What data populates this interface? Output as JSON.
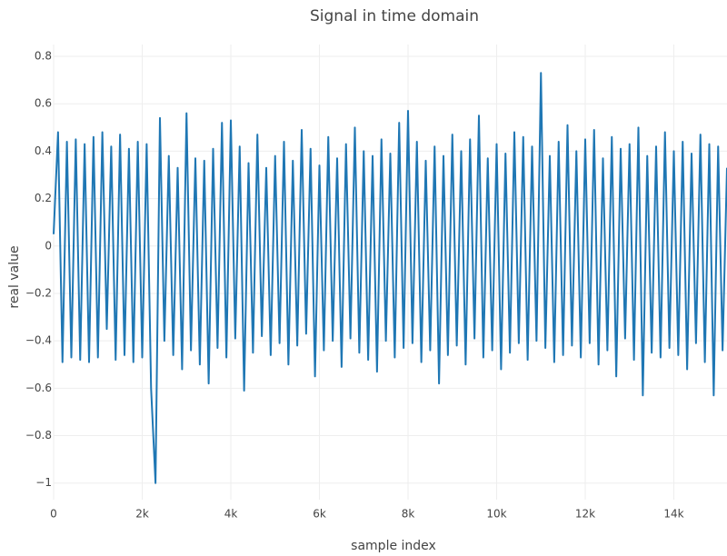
{
  "chart_data": {
    "type": "line",
    "title": "Signal in time domain",
    "x_label": "sample index",
    "y_label": "real value",
    "x": [
      0,
      100,
      200,
      300,
      400,
      500,
      600,
      700,
      800,
      900,
      1000,
      1100,
      1200,
      1300,
      1400,
      1500,
      1600,
      1700,
      1800,
      1900,
      2000,
      2100,
      2200,
      2300,
      2400,
      2500,
      2600,
      2700,
      2800,
      2900,
      3000,
      3100,
      3200,
      3300,
      3400,
      3500,
      3600,
      3700,
      3800,
      3900,
      4000,
      4100,
      4200,
      4300,
      4400,
      4500,
      4600,
      4700,
      4800,
      4900,
      5000,
      5100,
      5200,
      5300,
      5400,
      5500,
      5600,
      5700,
      5800,
      5900,
      6000,
      6100,
      6200,
      6300,
      6400,
      6500,
      6600,
      6700,
      6800,
      6900,
      7000,
      7100,
      7200,
      7300,
      7400,
      7500,
      7600,
      7700,
      7800,
      7900,
      8000,
      8100,
      8200,
      8300,
      8400,
      8500,
      8600,
      8700,
      8800,
      8900,
      9000,
      9100,
      9200,
      9300,
      9400,
      9500,
      9600,
      9700,
      9800,
      9900,
      10000,
      10100,
      10200,
      10300,
      10400,
      10500,
      10600,
      10700,
      10800,
      10900,
      11000,
      11100,
      11200,
      11300,
      11400,
      11500,
      11600,
      11700,
      11800,
      11900,
      12000,
      12100,
      12200,
      12300,
      12400,
      12500,
      12600,
      12700,
      12800,
      12900,
      13000,
      13100,
      13200,
      13300,
      13400,
      13500,
      13600,
      13700,
      13800,
      13900,
      14000,
      14100,
      14200,
      14300,
      14400,
      14500,
      14600,
      14700,
      14800,
      14900,
      15000,
      15100,
      15200
    ],
    "series": [
      {
        "name": "signal",
        "color": "#1f77b4",
        "values": [
          0.05,
          0.48,
          -0.49,
          0.44,
          -0.47,
          0.45,
          -0.48,
          0.43,
          -0.49,
          0.46,
          -0.47,
          0.48,
          -0.35,
          0.42,
          -0.48,
          0.47,
          -0.46,
          0.41,
          -0.49,
          0.44,
          -0.47,
          0.43,
          -0.6,
          -1.0,
          0.54,
          -0.4,
          0.38,
          -0.46,
          0.33,
          -0.52,
          0.56,
          -0.44,
          0.37,
          -0.5,
          0.36,
          -0.58,
          0.41,
          -0.43,
          0.52,
          -0.47,
          0.53,
          -0.39,
          0.42,
          -0.61,
          0.35,
          -0.45,
          0.47,
          -0.38,
          0.33,
          -0.46,
          0.38,
          -0.41,
          0.44,
          -0.5,
          0.36,
          -0.42,
          0.49,
          -0.37,
          0.41,
          -0.55,
          0.34,
          -0.44,
          0.46,
          -0.4,
          0.37,
          -0.51,
          0.43,
          -0.39,
          0.5,
          -0.45,
          0.4,
          -0.48,
          0.38,
          -0.53,
          0.45,
          -0.4,
          0.39,
          -0.47,
          0.52,
          -0.43,
          0.57,
          -0.41,
          0.44,
          -0.49,
          0.36,
          -0.44,
          0.42,
          -0.58,
          0.38,
          -0.46,
          0.47,
          -0.42,
          0.4,
          -0.5,
          0.45,
          -0.39,
          0.55,
          -0.47,
          0.37,
          -0.44,
          0.43,
          -0.52,
          0.39,
          -0.45,
          0.48,
          -0.41,
          0.46,
          -0.48,
          0.42,
          -0.4,
          0.73,
          -0.43,
          0.38,
          -0.49,
          0.44,
          -0.46,
          0.51,
          -0.42,
          0.4,
          -0.47,
          0.45,
          -0.41,
          0.49,
          -0.5,
          0.37,
          -0.44,
          0.46,
          -0.55,
          0.41,
          -0.39,
          0.43,
          -0.48,
          0.5,
          -0.63,
          0.38,
          -0.45,
          0.42,
          -0.47,
          0.48,
          -0.43,
          0.4,
          -0.46,
          0.44,
          -0.52,
          0.39,
          -0.41,
          0.47,
          -0.49,
          0.43,
          -0.63,
          0.42,
          -0.44,
          0.33
        ]
      }
    ],
    "xlim": [
      0,
      15200
    ],
    "xticks": [
      0,
      {
        "value": 2000,
        "label": "2k"
      },
      {
        "value": 4000,
        "label": "4k"
      },
      {
        "value": 6000,
        "label": "6k"
      },
      {
        "value": 8000,
        "label": "8k"
      },
      {
        "value": 10000,
        "label": "10k"
      },
      {
        "value": 12000,
        "label": "12k"
      },
      {
        "value": 14000,
        "label": "14k"
      }
    ],
    "ylim": [
      -1.07,
      0.85
    ],
    "yticks": [
      {
        "value": -1,
        "label": "−1"
      },
      {
        "value": -0.8,
        "label": "−0.8"
      },
      {
        "value": -0.6,
        "label": "−0.6"
      },
      {
        "value": -0.4,
        "label": "−0.4"
      },
      {
        "value": -0.2,
        "label": "−0.2"
      },
      0,
      0.2,
      0.4,
      0.6,
      0.8
    ],
    "grid": true
  }
}
